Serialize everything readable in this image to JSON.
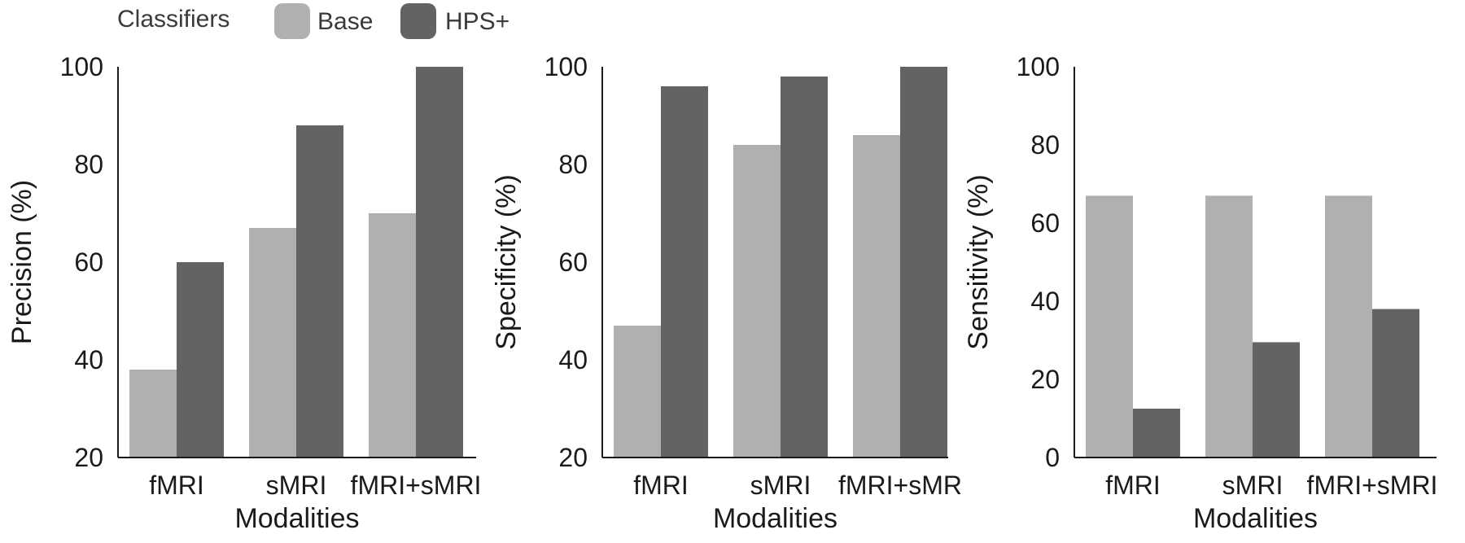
{
  "legend": {
    "title": "Classifiers",
    "items": [
      {
        "label": "Base",
        "color": "#b0b0b0"
      },
      {
        "label": "HPS+",
        "color": "#636363"
      }
    ]
  },
  "chart_data": [
    {
      "type": "bar",
      "categories": [
        "fMRI",
        "sMRI",
        "fMRI+sMRI"
      ],
      "series": [
        {
          "name": "Base",
          "values": [
            38,
            67,
            70
          ]
        },
        {
          "name": "HPS+",
          "values": [
            60,
            88,
            100
          ]
        }
      ],
      "xlabel": "Modalities",
      "ylabel": "Precision (%)",
      "ylim": [
        20,
        100
      ],
      "yticks": [
        20,
        40,
        60,
        80,
        100
      ],
      "grid": false,
      "legend": "top-left"
    },
    {
      "type": "bar",
      "categories": [
        "fMRI",
        "sMRI",
        "fMRI+sMR"
      ],
      "series": [
        {
          "name": "Base",
          "values": [
            47,
            84,
            86
          ]
        },
        {
          "name": "HPS+",
          "values": [
            96,
            98,
            100
          ]
        }
      ],
      "xlabel": "Modalities",
      "ylabel": "Specificity (%)",
      "ylim": [
        20,
        100
      ],
      "yticks": [
        20,
        40,
        60,
        80,
        100
      ],
      "grid": false
    },
    {
      "type": "bar",
      "categories": [
        "fMRI",
        "sMRI",
        "fMRI+sMRI"
      ],
      "series": [
        {
          "name": "Base",
          "values": [
            67,
            67,
            67
          ]
        },
        {
          "name": "HPS+",
          "values": [
            12.5,
            29.5,
            38
          ]
        }
      ],
      "xlabel": "Modalities",
      "ylabel": "Sensitivity (%)",
      "ylim": [
        0,
        100
      ],
      "yticks": [
        0,
        20,
        40,
        60,
        80,
        100
      ],
      "grid": false
    }
  ]
}
